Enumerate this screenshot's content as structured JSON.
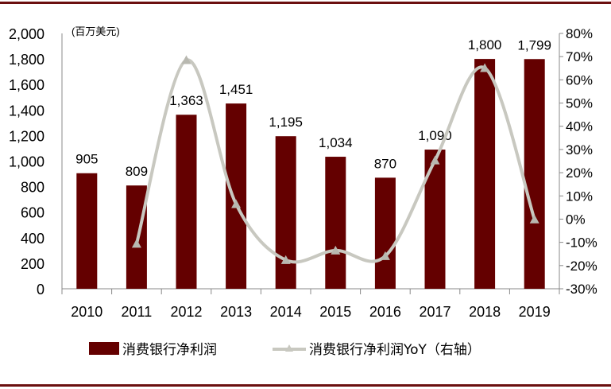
{
  "chart_data": {
    "type": "bar+line",
    "unit_label": "(百万美元)",
    "categories": [
      "2010",
      "2011",
      "2012",
      "2013",
      "2014",
      "2015",
      "2016",
      "2017",
      "2018",
      "2019"
    ],
    "series": [
      {
        "name": "消费银行净利润",
        "type": "bar",
        "axis": "left",
        "color": "#640000",
        "values": [
          905,
          809,
          1363,
          1451,
          1195,
          1034,
          870,
          1090,
          1800,
          1799
        ]
      },
      {
        "name": "消费银行净利润YoY（右轴）",
        "type": "line",
        "axis": "right",
        "color": "#c8c8c0",
        "marker": "triangle",
        "values": [
          null,
          -10.6,
          68.5,
          6.5,
          -17.6,
          -13.5,
          -15.9,
          25.3,
          65.1,
          -0.1
        ]
      }
    ],
    "y_left": {
      "min": 0,
      "max": 2000,
      "step": 200,
      "ticks": [
        "0",
        "200",
        "400",
        "600",
        "800",
        "1,000",
        "1,200",
        "1,400",
        "1,600",
        "1,800",
        "2,000"
      ]
    },
    "y_right": {
      "min": -30,
      "max": 80,
      "step": 10,
      "ticks": [
        "-30%",
        "-20%",
        "-10%",
        "0%",
        "10%",
        "20%",
        "30%",
        "40%",
        "50%",
        "60%",
        "70%",
        "80%"
      ]
    },
    "data_labels": [
      "905",
      "809",
      "1,363",
      "1,451",
      "1,195",
      "1,034",
      "870",
      "1,090",
      "1,800",
      "1,799"
    ],
    "grid": false,
    "legend": "bottom"
  }
}
